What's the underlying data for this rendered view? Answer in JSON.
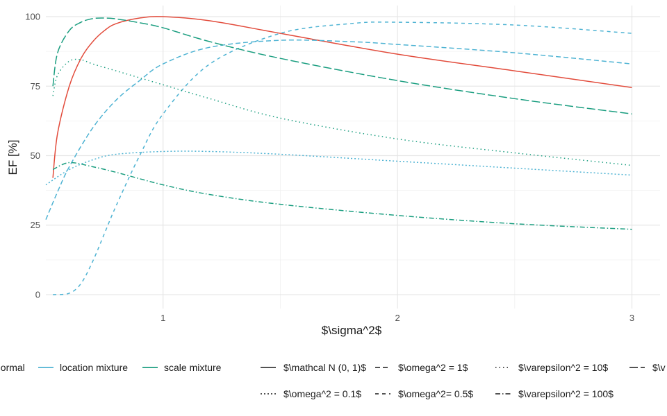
{
  "chart_data": {
    "type": "line",
    "xlabel": "$\\sigma^2$",
    "ylabel": "EF [%]",
    "xlim": [
      0.5,
      3.12
    ],
    "ylim": [
      -5,
      104
    ],
    "x_ticks": [
      1,
      2,
      3
    ],
    "y_ticks": [
      0,
      25,
      50,
      75,
      100
    ],
    "grid": true,
    "legend_position": "bottom",
    "colors": {
      "normal": "#E24B3B",
      "location mixture": "#4EB3D3",
      "scale mixture": "#1B9E80"
    },
    "colour_legend": [
      {
        "label": "normal",
        "color": "#E24B3B"
      },
      {
        "label": "location mixture",
        "color": "#4EB3D3"
      },
      {
        "label": "scale mixture",
        "color": "#1B9E80"
      }
    ],
    "linetype_legend": [
      {
        "label": "$\\mathcal N (0, 1)$",
        "dash": "solid"
      },
      {
        "label": "$\\omega^2 = 1$",
        "dash": "dashed"
      },
      {
        "label": "$\\varepsilon^2 = 10$",
        "dash": "dotted"
      },
      {
        "label": "$\\v",
        "dash": "longdash"
      },
      {
        "label": "$\\omega^2 = 0.1$",
        "dash": "dotted2"
      },
      {
        "label": "$\\omega^2= 0.5$",
        "dash": "dashed2"
      },
      {
        "label": "$\\varepsilon^2 = 100$",
        "dash": "dotdash"
      }
    ],
    "series": [
      {
        "name": "normal — $\\mathcal N (0, 1)$",
        "color": "#E24B3B",
        "dash": "solid",
        "x": [
          0.53,
          0.55,
          0.6,
          0.65,
          0.7,
          0.75,
          0.8,
          0.9,
          1.0,
          1.2,
          1.5,
          2.0,
          2.5,
          3.0
        ],
        "y": [
          42,
          58,
          75,
          85,
          91,
          95,
          97.5,
          99.5,
          100,
          98.5,
          94,
          86.5,
          80.5,
          74.5
        ]
      },
      {
        "name": "location mixture — $\\omega^2 = 1$",
        "color": "#4EB3D3",
        "dash": "dashed",
        "x": [
          0.5,
          0.55,
          0.6,
          0.7,
          0.8,
          0.9,
          1.0,
          1.2,
          1.5,
          1.8,
          2.0,
          2.5,
          3.0
        ],
        "y": [
          27,
          37,
          46,
          60,
          70,
          77,
          83,
          89,
          91.5,
          91,
          90,
          87,
          83
        ]
      },
      {
        "name": "location mixture — $\\omega^2 = 0.1$",
        "color": "#4EB3D3",
        "dash": "dotted2",
        "x": [
          0.5,
          0.6,
          0.7,
          0.8,
          1.0,
          1.2,
          1.5,
          2.0,
          2.5,
          3.0
        ],
        "y": [
          39.5,
          45,
          48.5,
          50.5,
          51.5,
          51.5,
          50.5,
          48,
          45.5,
          43
        ]
      },
      {
        "name": "location mixture — $\\omega^2= 0.5$",
        "color": "#4EB3D3",
        "dash": "dashed2",
        "x": [
          0.53,
          0.6,
          0.65,
          0.7,
          0.75,
          0.8,
          0.9,
          1.0,
          1.2,
          1.5,
          1.8,
          2.0,
          2.5,
          3.0
        ],
        "y": [
          0,
          0.5,
          4,
          12,
          22,
          32,
          50,
          65,
          83,
          94,
          97.5,
          98,
          97,
          94
        ]
      },
      {
        "name": "scale mixture — $\\varepsilon^2 = 10$",
        "color": "#1B9E80",
        "dash": "dotted",
        "x": [
          0.53,
          0.55,
          0.6,
          0.65,
          0.7,
          0.8,
          1.0,
          1.2,
          1.5,
          2.0,
          2.5,
          3.0
        ],
        "y": [
          71.5,
          79,
          84,
          84.5,
          83,
          80.5,
          75.5,
          70.5,
          63.5,
          56,
          51,
          46.5
        ]
      },
      {
        "name": "scale mixture — $\\varepsilon^2 = 100$",
        "color": "#1B9E80",
        "dash": "dotdash",
        "x": [
          0.53,
          0.6,
          0.7,
          0.8,
          1.0,
          1.2,
          1.5,
          2.0,
          2.5,
          3.0
        ],
        "y": [
          45,
          47.5,
          46,
          44,
          39.5,
          36,
          32.5,
          28.5,
          25.5,
          23.5
        ]
      },
      {
        "name": "scale mixture — $\\v",
        "color": "#1B9E80",
        "dash": "longdash",
        "x": [
          0.53,
          0.55,
          0.6,
          0.65,
          0.7,
          0.75,
          0.8,
          0.9,
          1.0,
          1.2,
          1.5,
          2.0,
          2.5,
          3.0
        ],
        "y": [
          75,
          87,
          95,
          98,
          99.3,
          99.5,
          99.2,
          97.8,
          96,
          91,
          85,
          77,
          70.5,
          65
        ]
      }
    ]
  }
}
